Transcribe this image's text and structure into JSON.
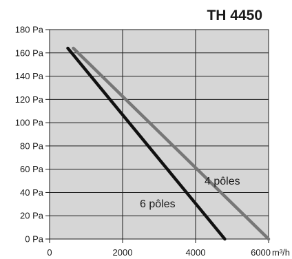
{
  "chart_data": {
    "type": "line",
    "title": "TH 4450",
    "x_unit_label": "m³/h",
    "xlim": [
      0,
      6000
    ],
    "ylim": [
      0,
      180
    ],
    "x_ticks": [
      0,
      2000,
      4000,
      6000
    ],
    "x_tick_labels": [
      "0",
      "2000",
      "4000",
      "6000"
    ],
    "y_ticks": [
      0,
      20,
      40,
      60,
      80,
      100,
      120,
      140,
      160,
      180
    ],
    "y_tick_labels": [
      "0 Pa",
      "20 Pa",
      "40 Pa",
      "60 Pa",
      "80 Pa",
      "100 Pa",
      "120 Pa",
      "140 Pa",
      "160 Pa",
      "180 Pa"
    ],
    "x_minor_gridlines": [],
    "grid": true,
    "series": [
      {
        "name": "4 pôles",
        "color": "#777777",
        "x": [
          650,
          6000
        ],
        "y": [
          164,
          0
        ]
      },
      {
        "name": "6 pôles",
        "color": "#111111",
        "x": [
          500,
          4800
        ],
        "y": [
          164,
          0
        ]
      }
    ]
  },
  "colors": {
    "plot_background": "#d6d6d6",
    "grid": "#1a1a1a"
  }
}
